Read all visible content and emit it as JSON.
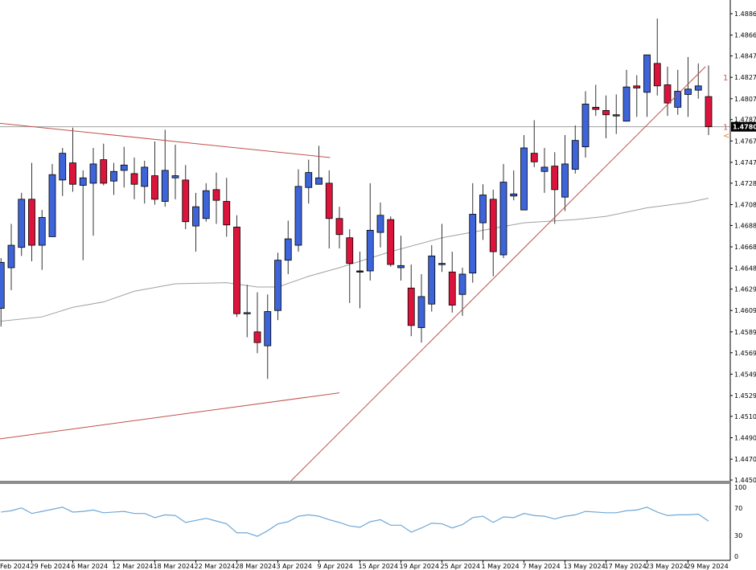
{
  "chart_data": {
    "type": "candlestick",
    "ylim": [
      1.44498,
      1.48993
    ],
    "price_ticks": [
      "1.48865",
      "1.48665",
      "1.48470",
      "1.48270",
      "1.48070",
      "1.47875",
      "1.47675",
      "1.47475",
      "1.47280",
      "1.47080",
      "1.46885",
      "1.46685",
      "1.46485",
      "1.46290",
      "1.46090",
      "1.45890",
      "1.45695",
      "1.45495",
      "1.45295",
      "1.45100",
      "1.44900",
      "1.44700",
      "1.44505"
    ],
    "current_price": "1.47808",
    "right_markers": [
      {
        "text": "1",
        "price": 1.4827,
        "color": "#d9534f"
      },
      {
        "text": "1",
        "price": 1.4781,
        "color": "#d9534f"
      },
      {
        "text": "<",
        "price": 1.4773,
        "color": "#e08a3c"
      }
    ],
    "colors": {
      "bull": "#3d64d8",
      "bear": "#dc143c",
      "outline": "#000000",
      "ma": "#a0a0a0",
      "trendline": "#c0504d",
      "oscillator": "#6fa8d6",
      "current_line": "#a0a0a0"
    },
    "date_labels": [
      {
        "index": 0,
        "text": "Feb 2024"
      },
      {
        "index": 4,
        "text": "29 Feb 2024"
      },
      {
        "index": 8,
        "text": "6 Mar 2024"
      },
      {
        "index": 12,
        "text": "12 Mar 2024"
      },
      {
        "index": 16,
        "text": "18 Mar 2024"
      },
      {
        "index": 20,
        "text": "22 Mar 2024"
      },
      {
        "index": 24,
        "text": "28 Mar 2024"
      },
      {
        "index": 28,
        "text": "3 Apr 2024"
      },
      {
        "index": 32,
        "text": "9 Apr 2024"
      },
      {
        "index": 36,
        "text": "15 Apr 2024"
      },
      {
        "index": 40,
        "text": "19 Apr 2024"
      },
      {
        "index": 44,
        "text": "25 Apr 2024"
      },
      {
        "index": 48,
        "text": "1 May 2024"
      },
      {
        "index": 52,
        "text": "7 May 2024"
      },
      {
        "index": 56,
        "text": "13 May 2024"
      },
      {
        "index": 60,
        "text": "17 May 2024"
      },
      {
        "index": 64,
        "text": "23 May 2024"
      },
      {
        "index": 68,
        "text": "29 May 2024"
      }
    ],
    "candles": [
      [
        1.4611,
        1.4658,
        1.4594,
        1.4654
      ],
      [
        1.4649,
        1.469,
        1.4628,
        1.467
      ],
      [
        1.4668,
        1.4719,
        1.466,
        1.4713
      ],
      [
        1.4713,
        1.4747,
        1.4655,
        1.467
      ],
      [
        1.467,
        1.4703,
        1.4647,
        1.4696
      ],
      [
        1.4678,
        1.4746,
        1.4678,
        1.4736
      ],
      [
        1.4731,
        1.4761,
        1.4716,
        1.4756
      ],
      [
        1.4747,
        1.478,
        1.472,
        1.4727
      ],
      [
        1.4726,
        1.474,
        1.4656,
        1.4733
      ],
      [
        1.4728,
        1.4761,
        1.4679,
        1.4746
      ],
      [
        1.475,
        1.4765,
        1.4726,
        1.4728
      ],
      [
        1.473,
        1.4747,
        1.4717,
        1.4739
      ],
      [
        1.474,
        1.4762,
        1.4724,
        1.4745
      ],
      [
        1.4737,
        1.4752,
        1.4713,
        1.4727
      ],
      [
        1.4725,
        1.4749,
        1.4709,
        1.4743
      ],
      [
        1.4735,
        1.4767,
        1.4708,
        1.4713
      ],
      [
        1.4711,
        1.4778,
        1.4706,
        1.474
      ],
      [
        1.4733,
        1.4764,
        1.4713,
        1.4735
      ],
      [
        1.4731,
        1.4745,
        1.4685,
        1.4692
      ],
      [
        1.4688,
        1.4719,
        1.4664,
        1.4706
      ],
      [
        1.4695,
        1.4728,
        1.4692,
        1.4721
      ],
      [
        1.4722,
        1.4738,
        1.469,
        1.4712
      ],
      [
        1.4711,
        1.4733,
        1.4678,
        1.4689
      ],
      [
        1.4687,
        1.4698,
        1.4603,
        1.4606
      ],
      [
        1.4606,
        1.4633,
        1.4584,
        1.4607
      ],
      [
        1.4589,
        1.4626,
        1.4569,
        1.4579
      ],
      [
        1.4576,
        1.4624,
        1.4545,
        1.4608
      ],
      [
        1.4609,
        1.4663,
        1.46,
        1.4656
      ],
      [
        1.4656,
        1.4693,
        1.4643,
        1.4676
      ],
      [
        1.467,
        1.4741,
        1.4664,
        1.4725
      ],
      [
        1.4724,
        1.475,
        1.4709,
        1.4738
      ],
      [
        1.4727,
        1.4763,
        1.4727,
        1.4733
      ],
      [
        1.4728,
        1.474,
        1.4667,
        1.4695
      ],
      [
        1.4695,
        1.4706,
        1.4667,
        1.468
      ],
      [
        1.4677,
        1.4685,
        1.4616,
        1.4653
      ],
      [
        1.4646,
        1.4664,
        1.4611,
        1.4646
      ],
      [
        1.4646,
        1.4728,
        1.4637,
        1.4684
      ],
      [
        1.4682,
        1.471,
        1.4668,
        1.4698
      ],
      [
        1.4694,
        1.4697,
        1.465,
        1.4652
      ],
      [
        1.4649,
        1.4679,
        1.4637,
        1.4651
      ],
      [
        1.463,
        1.4652,
        1.4585,
        1.4595
      ],
      [
        1.4593,
        1.4643,
        1.4579,
        1.4622
      ],
      [
        1.4615,
        1.467,
        1.4608,
        1.466
      ],
      [
        1.4652,
        1.469,
        1.4645,
        1.4653
      ],
      [
        1.4645,
        1.4664,
        1.4607,
        1.4614
      ],
      [
        1.4624,
        1.4649,
        1.4604,
        1.4643
      ],
      [
        1.4644,
        1.4728,
        1.4635,
        1.4699
      ],
      [
        1.4691,
        1.4727,
        1.4675,
        1.4717
      ],
      [
        1.4713,
        1.4722,
        1.4641,
        1.4664
      ],
      [
        1.4661,
        1.4746,
        1.4658,
        1.4729
      ],
      [
        1.4716,
        1.474,
        1.4712,
        1.4718
      ],
      [
        1.4703,
        1.4773,
        1.4703,
        1.4761
      ],
      [
        1.4756,
        1.4787,
        1.4743,
        1.4748
      ],
      [
        1.4739,
        1.4761,
        1.4719,
        1.4743
      ],
      [
        1.4744,
        1.4757,
        1.469,
        1.4722
      ],
      [
        1.4715,
        1.4773,
        1.4702,
        1.4746
      ],
      [
        1.4741,
        1.4782,
        1.4737,
        1.4768
      ],
      [
        1.4762,
        1.4814,
        1.4752,
        1.4802
      ],
      [
        1.4799,
        1.482,
        1.4791,
        1.4797
      ],
      [
        1.4796,
        1.481,
        1.477,
        1.4792
      ],
      [
        1.4792,
        1.4811,
        1.4774,
        1.4791
      ],
      [
        1.4786,
        1.4834,
        1.4786,
        1.4818
      ],
      [
        1.4819,
        1.4829,
        1.479,
        1.4817
      ],
      [
        1.4813,
        1.4848,
        1.479,
        1.4848
      ],
      [
        1.484,
        1.4882,
        1.481,
        1.4819
      ],
      [
        1.482,
        1.4837,
        1.4791,
        1.4803
      ],
      [
        1.4799,
        1.4834,
        1.4792,
        1.4814
      ],
      [
        1.4811,
        1.4846,
        1.479,
        1.4816
      ],
      [
        1.4815,
        1.484,
        1.4807,
        1.4819
      ],
      [
        1.4809,
        1.4838,
        1.4773,
        1.47808
      ]
    ],
    "candle_fields": [
      "open",
      "high",
      "low",
      "close"
    ],
    "moving_average": [
      [
        1,
        1.4599
      ],
      [
        5,
        1.4603
      ],
      [
        8,
        1.4612
      ],
      [
        11,
        1.4617
      ],
      [
        14,
        1.4627
      ],
      [
        18,
        1.4634
      ],
      [
        23,
        1.4635
      ],
      [
        26,
        1.4631
      ],
      [
        28,
        1.4631
      ],
      [
        31,
        1.4641
      ],
      [
        34,
        1.4649
      ],
      [
        39,
        1.4664
      ],
      [
        44,
        1.4677
      ],
      [
        52,
        1.4691
      ],
      [
        57,
        1.4694
      ],
      [
        60,
        1.4697
      ],
      [
        64,
        1.4705
      ],
      [
        68,
        1.471
      ],
      [
        70,
        1.4714
      ]
    ],
    "trendlines": [
      {
        "from": [
          0.9,
          1.4784
        ],
        "to": [
          33.1,
          1.4752
        ]
      },
      {
        "from": [
          0.9,
          1.4489
        ],
        "to": [
          34.0,
          1.4532
        ]
      },
      {
        "from": [
          29.1,
          1.4448
        ],
        "to": [
          69.7,
          1.4837
        ]
      }
    ],
    "oscillator": {
      "ylim": [
        0,
        100
      ],
      "ticks": [
        "100",
        "70",
        "30",
        "0"
      ],
      "values": [
        64,
        66,
        70,
        62,
        65,
        68,
        71,
        64,
        65,
        67,
        63,
        64,
        65,
        62,
        62,
        56,
        60,
        59,
        49,
        52,
        55,
        51,
        47,
        34,
        34,
        29,
        37,
        47,
        50,
        58,
        60,
        58,
        53,
        49,
        44,
        42,
        50,
        53,
        45,
        45,
        35,
        41,
        48,
        47,
        41,
        46,
        56,
        58,
        49,
        57,
        56,
        62,
        59,
        58,
        54,
        58,
        60,
        65,
        64,
        63,
        63,
        66,
        67,
        71,
        64,
        59,
        60,
        60,
        61,
        51
      ]
    }
  }
}
